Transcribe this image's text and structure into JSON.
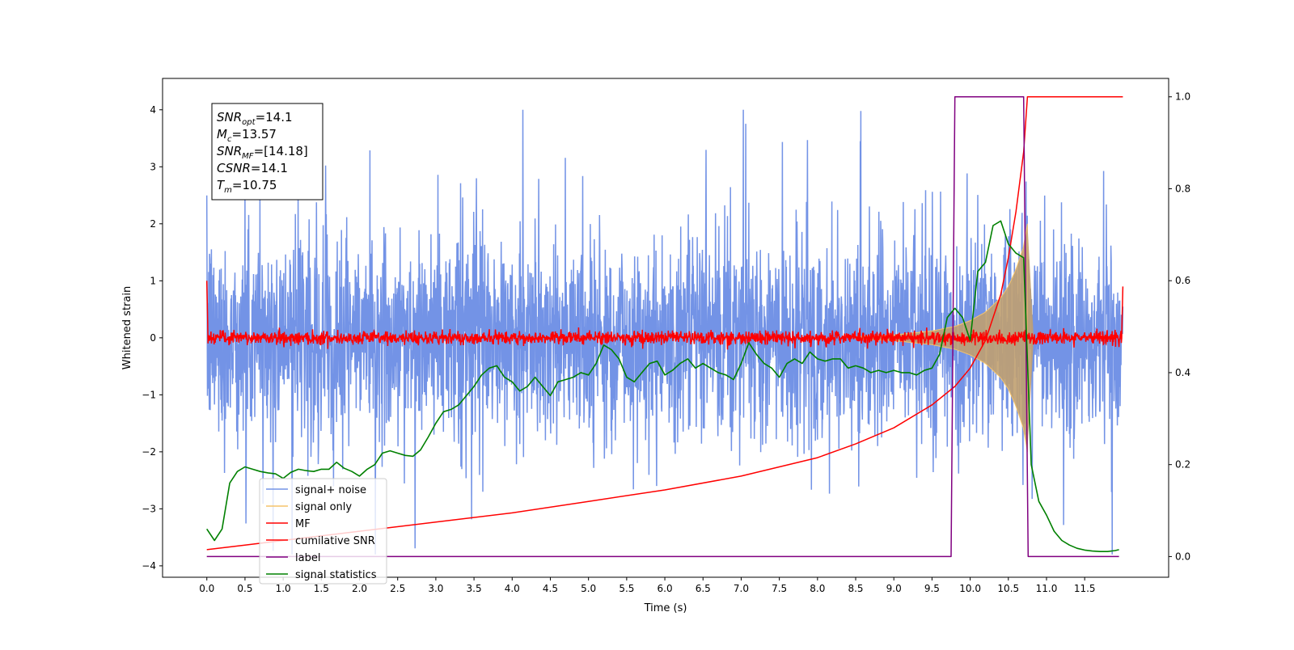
{
  "chart_data": {
    "type": "line",
    "xlabel": "Time (s)",
    "ylabel": "Whitened strain",
    "xlim": [
      -0.58,
      12.6
    ],
    "ylim": [
      -4.2,
      4.55
    ],
    "y2lim": [
      -0.045,
      1.04
    ],
    "x_ticks": [
      0.0,
      0.5,
      1.0,
      1.5,
      2.0,
      2.5,
      3.0,
      3.5,
      4.0,
      4.5,
      5.0,
      5.5,
      6.0,
      6.5,
      7.0,
      7.5,
      8.0,
      8.5,
      9.0,
      9.5,
      10.0,
      10.5,
      11.0,
      11.5
    ],
    "x_tick_labels": [
      "0.0",
      "0.5",
      "1.0",
      "1.5",
      "2.0",
      "2.5",
      "3.0",
      "3.5",
      "4.0",
      "4.5",
      "5.0",
      "5.5",
      "6.0",
      "6.5",
      "7.0",
      "7.5",
      "8.0",
      "8.5",
      "9.0",
      "9.5",
      "10.0",
      "10.5",
      "11.0",
      "11.5"
    ],
    "y_ticks": [
      -4,
      -3,
      -2,
      -1,
      0,
      1,
      2,
      3,
      4
    ],
    "y_tick_labels": [
      "−4",
      "−3",
      "−2",
      "−1",
      "0",
      "1",
      "2",
      "3",
      "4"
    ],
    "y2_ticks": [
      0.0,
      0.2,
      0.4,
      0.6,
      0.8,
      1.0
    ],
    "y2_tick_labels": [
      "0.0",
      "0.2",
      "0.4",
      "0.6",
      "0.8",
      "1.0"
    ],
    "legend_position": "lower-left",
    "grid": false,
    "annotation_box": [
      {
        "base": "SNR",
        "sub": "opt",
        "value": "=14.1"
      },
      {
        "base": "M",
        "sub": "c",
        "value": "=13.57"
      },
      {
        "base": "SNR",
        "sub": "MF",
        "value": "=[14.18]"
      },
      {
        "base": "CSNR",
        "sub": "",
        "value": "=14.1"
      },
      {
        "base": "T",
        "sub": "m",
        "value": "=10.75"
      }
    ],
    "series": [
      {
        "name": "signal+ noise",
        "axis": "left",
        "color": "#7393e6",
        "kind": "noise",
        "x_range": [
          0.0,
          12.0
        ],
        "sigma": 0.9,
        "max": 4.0,
        "min": -3.8
      },
      {
        "name": "signal only",
        "axis": "left",
        "color": "#f5c46b",
        "kind": "chirp-envelope",
        "fill_color": "#c0a070",
        "x": [
          8.5,
          9.0,
          9.5,
          9.8,
          10.0,
          10.2,
          10.4,
          10.5,
          10.6,
          10.7,
          10.75
        ],
        "amplitude": [
          0.02,
          0.05,
          0.12,
          0.2,
          0.3,
          0.45,
          0.7,
          0.9,
          1.2,
          1.6,
          2.0
        ]
      },
      {
        "name": "MF",
        "axis": "left",
        "color": "#ff0000",
        "kind": "matched-filter",
        "x_range": [
          0.0,
          12.0
        ],
        "start_value": 1.0,
        "end_value": 0.9,
        "band": 0.12
      },
      {
        "name": "cumilative SNR",
        "axis": "right",
        "color": "#ff0000",
        "x": [
          0.0,
          0.5,
          1.0,
          2.0,
          3.0,
          4.0,
          5.0,
          6.0,
          7.0,
          8.0,
          8.5,
          9.0,
          9.5,
          9.8,
          10.0,
          10.2,
          10.4,
          10.5,
          10.6,
          10.7,
          10.75,
          11.0,
          11.5,
          12.0
        ],
        "values": [
          0.015,
          0.025,
          0.035,
          0.055,
          0.075,
          0.095,
          0.12,
          0.145,
          0.175,
          0.215,
          0.245,
          0.28,
          0.33,
          0.37,
          0.41,
          0.47,
          0.57,
          0.65,
          0.75,
          0.88,
          1.0,
          1.0,
          1.0,
          1.0
        ]
      },
      {
        "name": "label",
        "axis": "right",
        "color": "#800080",
        "x": [
          0.0,
          9.75,
          9.8,
          10.7,
          10.76,
          11.95
        ],
        "values": [
          0.0,
          0.0,
          1.0,
          1.0,
          0.0,
          0.0
        ]
      },
      {
        "name": "signal statistics",
        "axis": "right",
        "color": "#008000",
        "x": [
          0.0,
          0.1,
          0.2,
          0.3,
          0.4,
          0.5,
          0.6,
          0.7,
          0.8,
          0.9,
          1.0,
          1.1,
          1.2,
          1.3,
          1.4,
          1.5,
          1.6,
          1.7,
          1.8,
          1.9,
          2.0,
          2.1,
          2.2,
          2.3,
          2.4,
          2.5,
          2.6,
          2.7,
          2.8,
          2.9,
          3.0,
          3.1,
          3.2,
          3.3,
          3.4,
          3.5,
          3.6,
          3.7,
          3.8,
          3.9,
          4.0,
          4.1,
          4.2,
          4.3,
          4.4,
          4.5,
          4.6,
          4.7,
          4.8,
          4.9,
          5.0,
          5.1,
          5.2,
          5.3,
          5.4,
          5.5,
          5.6,
          5.7,
          5.8,
          5.9,
          6.0,
          6.1,
          6.2,
          6.3,
          6.4,
          6.5,
          6.6,
          6.7,
          6.8,
          6.9,
          7.0,
          7.1,
          7.2,
          7.3,
          7.4,
          7.5,
          7.6,
          7.7,
          7.8,
          7.9,
          8.0,
          8.1,
          8.2,
          8.3,
          8.4,
          8.5,
          8.6,
          8.7,
          8.8,
          8.9,
          9.0,
          9.1,
          9.2,
          9.3,
          9.4,
          9.5,
          9.6,
          9.7,
          9.8,
          9.9,
          10.0,
          10.1,
          10.2,
          10.3,
          10.4,
          10.5,
          10.6,
          10.7,
          10.8,
          10.9,
          11.0,
          11.1,
          11.2,
          11.3,
          11.4,
          11.5,
          11.6,
          11.7,
          11.8,
          11.9,
          11.95
        ],
        "values": [
          0.06,
          0.035,
          0.06,
          0.16,
          0.185,
          0.195,
          0.19,
          0.185,
          0.182,
          0.18,
          0.17,
          0.183,
          0.19,
          0.187,
          0.185,
          0.19,
          0.19,
          0.205,
          0.192,
          0.185,
          0.175,
          0.19,
          0.2,
          0.225,
          0.23,
          0.225,
          0.22,
          0.218,
          0.232,
          0.26,
          0.29,
          0.315,
          0.32,
          0.33,
          0.35,
          0.37,
          0.395,
          0.41,
          0.415,
          0.39,
          0.38,
          0.36,
          0.37,
          0.39,
          0.37,
          0.35,
          0.38,
          0.385,
          0.39,
          0.4,
          0.395,
          0.42,
          0.46,
          0.45,
          0.43,
          0.39,
          0.38,
          0.4,
          0.42,
          0.425,
          0.395,
          0.405,
          0.42,
          0.43,
          0.41,
          0.42,
          0.41,
          0.4,
          0.395,
          0.385,
          0.42,
          0.465,
          0.44,
          0.42,
          0.41,
          0.39,
          0.42,
          0.43,
          0.42,
          0.445,
          0.43,
          0.425,
          0.43,
          0.43,
          0.41,
          0.415,
          0.41,
          0.4,
          0.405,
          0.4,
          0.405,
          0.4,
          0.4,
          0.395,
          0.405,
          0.41,
          0.44,
          0.52,
          0.54,
          0.52,
          0.47,
          0.62,
          0.64,
          0.72,
          0.73,
          0.68,
          0.66,
          0.65,
          0.2,
          0.12,
          0.09,
          0.055,
          0.035,
          0.025,
          0.018,
          0.014,
          0.012,
          0.011,
          0.011,
          0.013,
          0.015
        ]
      }
    ]
  }
}
